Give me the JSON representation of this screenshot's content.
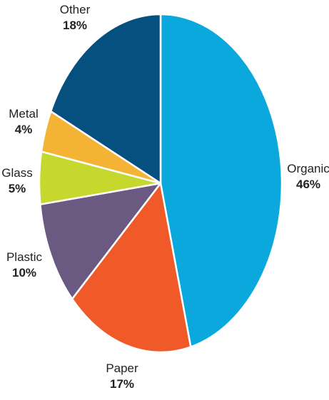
{
  "chart_data": {
    "type": "pie",
    "title": "",
    "legend": "none",
    "slices": [
      {
        "name": "Organic",
        "value": 46,
        "label": "46%",
        "color": "#0aa8dc"
      },
      {
        "name": "Paper",
        "value": 17,
        "label": "17%",
        "color": "#f05a28"
      },
      {
        "name": "Plastic",
        "value": 10,
        "label": "10%",
        "color": "#6a5a82"
      },
      {
        "name": "Glass",
        "value": 5,
        "label": "5%",
        "color": "#c6d72e"
      },
      {
        "name": "Metal",
        "value": 4,
        "label": "4%",
        "color": "#f5b335"
      },
      {
        "name": "Other",
        "value": 18,
        "label": "18%",
        "color": "#05507e"
      }
    ]
  }
}
